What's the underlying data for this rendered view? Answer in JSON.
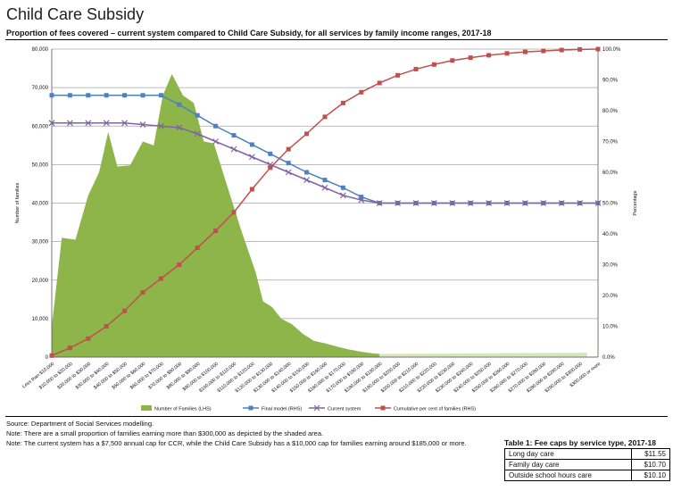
{
  "page": {
    "title": "Child Care Subsidy",
    "subtitle": "Proportion of fees covered – current system compared to Child Care Subsidy, for all services by family income ranges, 2017-18",
    "notes": [
      "Source: Department of Social Services modelling.",
      "Note: There are a small proportion of families earning more than $300,000 as depicted by the shaded area.",
      "Note: The current system has a $7,500 annual cap for CCR, while the Child Care Subsidy has a $10,000 cap for families earning around $185,000 or more."
    ]
  },
  "fee_table": {
    "title": "Table 1: Fee caps by service type, 2017-18",
    "rows": [
      {
        "service": "Long day care",
        "cap": "$11.55"
      },
      {
        "service": "Family day care",
        "cap": "$10.70"
      },
      {
        "service": "Outside school hours care",
        "cap": "$10.10"
      }
    ]
  },
  "chart_data": {
    "type": "area",
    "ylabel": "Number of families",
    "y2label": "Percentage",
    "ylim": [
      0,
      80000
    ],
    "y2lim": [
      0,
      100
    ],
    "y_ticks": [
      "0",
      "10,000",
      "20,000",
      "30,000",
      "40,000",
      "50,000",
      "60,000",
      "70,000",
      "80,000"
    ],
    "y2_ticks": [
      "0.0%",
      "10.0%",
      "20.0%",
      "30.0%",
      "40.0%",
      "50.0%",
      "60.0%",
      "70.0%",
      "80.0%",
      "90.0%",
      "100.0%"
    ],
    "grid": true,
    "legend_position": "bottom",
    "categories": [
      "Less than $10,000",
      "$10,000 to $20,000",
      "$20,000 to $30,000",
      "$30,000 to $40,000",
      "$40,000 to $50,000",
      "$50,000 to $60,000",
      "$60,000 to $70,000",
      "$70,000 to $80,000",
      "$80,000 to $90,000",
      "$90,000 to $100,000",
      "$100,000 to $110,000",
      "$110,000 to $120,000",
      "$120,000 to $130,000",
      "$130,000 to $140,000",
      "$140,000 to $150,000",
      "$150,000 to $160,000",
      "$160,000 to $170,000",
      "$170,000 to $180,000",
      "$180,000 to $190,000",
      "$190,000 to $200,000",
      "$200,000 to $210,000",
      "$210,000 to $220,000",
      "$220,000 to $230,000",
      "$230,000 to $240,000",
      "$240,000 to $250,000",
      "$250,000 to $260,000",
      "$260,000 to $270,000",
      "$270,000 to $280,000",
      "$280,000 to $290,000",
      "$290,000 to $300,000",
      "$300,000 or more"
    ],
    "area_samples": [
      [
        0,
        8000
      ],
      [
        0.55,
        31000
      ],
      [
        1.3,
        30500
      ],
      [
        2,
        42000
      ],
      [
        2.6,
        48000
      ],
      [
        3.1,
        58500
      ],
      [
        3.6,
        49500
      ],
      [
        4.3,
        49800
      ],
      [
        5,
        56000
      ],
      [
        5.6,
        55000
      ],
      [
        6.1,
        68000
      ],
      [
        6.6,
        73500
      ],
      [
        7.2,
        68000
      ],
      [
        7.8,
        66000
      ],
      [
        8.35,
        56000
      ],
      [
        8.9,
        55500
      ],
      [
        9.6,
        45000
      ],
      [
        10.4,
        33000
      ],
      [
        11.2,
        22000
      ],
      [
        11.6,
        14500
      ],
      [
        12.1,
        13000
      ],
      [
        12.6,
        10000
      ],
      [
        13.2,
        8500
      ],
      [
        13.8,
        6000
      ],
      [
        14.4,
        4200
      ],
      [
        15,
        3600
      ],
      [
        15.6,
        2800
      ],
      [
        16.3,
        2000
      ],
      [
        17,
        1400
      ],
      [
        17.6,
        1000
      ],
      [
        18,
        800
      ]
    ],
    "series": [
      {
        "name": "Number of Families (LHS)",
        "axis": "left",
        "type": "area",
        "color": "#8db54a"
      },
      {
        "name": "Final model (RHS)",
        "axis": "right",
        "type": "line",
        "color": "#4f81bd",
        "values": [
          85,
          85,
          85,
          85,
          85,
          85,
          85,
          82,
          78.5,
          75,
          72,
          69,
          66,
          63,
          60,
          57.5,
          55,
          52,
          50,
          50,
          50,
          50,
          50,
          50,
          50,
          50,
          50,
          50,
          50,
          50,
          50
        ]
      },
      {
        "name": "Current system",
        "axis": "right",
        "type": "line",
        "color": "#8064a2",
        "values": [
          76,
          76,
          76,
          76,
          76,
          75.5,
          75,
          74.5,
          72.5,
          70,
          67.5,
          65,
          62.5,
          60,
          57.5,
          55,
          52.5,
          51,
          50,
          50,
          50,
          50,
          50,
          50,
          50,
          50,
          50,
          50,
          50,
          50,
          50
        ]
      },
      {
        "name": "Cumulative per cent of families (RHS)",
        "axis": "right",
        "type": "line",
        "color": "#c0504d",
        "values": [
          0.5,
          3,
          6,
          10,
          15,
          21,
          25.5,
          30,
          35.5,
          41,
          47,
          54.5,
          61.5,
          67.5,
          72.5,
          78,
          82.5,
          86,
          89,
          91.5,
          93.5,
          95,
          96.3,
          97.2,
          98,
          98.6,
          99.1,
          99.4,
          99.7,
          99.9,
          100
        ]
      }
    ]
  }
}
